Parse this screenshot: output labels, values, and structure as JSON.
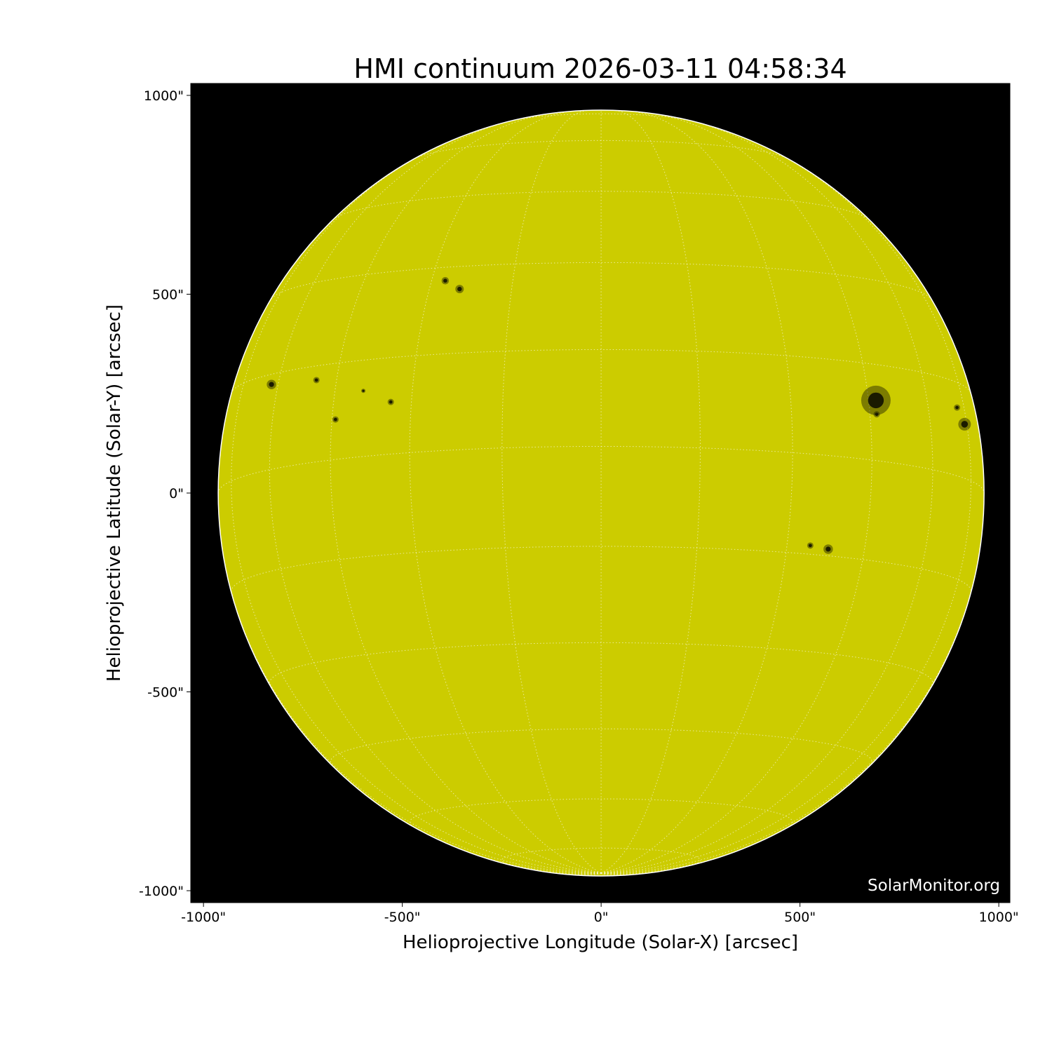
{
  "chart_data": {
    "type": "image",
    "title": "HMI continuum 2026-03-11 04:58:34",
    "xlabel": "Helioprojective Longitude (Solar-X) [arcsec]",
    "ylabel": "Helioprojective Latitude (Solar-Y) [arcsec]",
    "xlim": [
      -1032,
      1028
    ],
    "ylim": [
      -1030,
      1030
    ],
    "xticks": [
      -1000,
      -500,
      0,
      500,
      1000
    ],
    "yticks": [
      -1000,
      -500,
      0,
      500,
      1000
    ],
    "xtick_labels": [
      "-1000\"",
      "-500\"",
      "0\"",
      "500\"",
      "1000\""
    ],
    "ytick_labels": [
      "-1000\"",
      "-500\"",
      "0\"",
      "500\"",
      "1000\""
    ],
    "solar_radius_arcsec": 963,
    "b0_deg": -7,
    "graticule_step_deg": 15,
    "grid": true,
    "colors": {
      "disk": "#cccc00",
      "background": "#000000",
      "grid": "#ffffff",
      "sunspot": "#1a1a00"
    },
    "sunspots": [
      {
        "x": 691,
        "y": 233,
        "size": 28
      },
      {
        "x": 693,
        "y": 198,
        "size": 6
      },
      {
        "x": 914,
        "y": 173,
        "size": 12
      },
      {
        "x": 895,
        "y": 215,
        "size": 6
      },
      {
        "x": 571,
        "y": -141,
        "size": 9
      },
      {
        "x": 526,
        "y": -132,
        "size": 6
      },
      {
        "x": -392,
        "y": 534,
        "size": 7
      },
      {
        "x": -356,
        "y": 513,
        "size": 8
      },
      {
        "x": -829,
        "y": 273,
        "size": 9
      },
      {
        "x": -716,
        "y": 284,
        "size": 6
      },
      {
        "x": -529,
        "y": 229,
        "size": 6
      },
      {
        "x": -668,
        "y": 185,
        "size": 6
      },
      {
        "x": -598,
        "y": 257,
        "size": 4
      }
    ],
    "watermark": "SolarMonitor.org"
  }
}
